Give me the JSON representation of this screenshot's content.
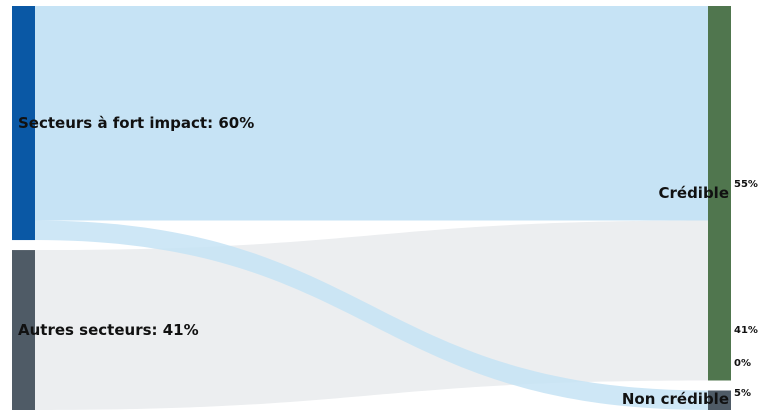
{
  "chart_data": {
    "type": "sankey",
    "sources": [
      {
        "id": "high",
        "label": "Secteurs à fort impact: 60%",
        "value": 60,
        "color": "#0a58a5",
        "link_color": "#c6e3f5"
      },
      {
        "id": "other",
        "label": "Autres secteurs: 41%",
        "value": 41,
        "color": "#4f5b66",
        "link_color": "#eceef0"
      }
    ],
    "targets": [
      {
        "id": "cred",
        "label": "Crédible",
        "value": 96,
        "color": "#50764e"
      },
      {
        "id": "noncred",
        "label": "Non crédible",
        "value": 5,
        "color": "#4f5b66"
      }
    ],
    "links": [
      {
        "source": "high",
        "target": "cred",
        "value": 55,
        "pct_label": "55%"
      },
      {
        "source": "other",
        "target": "cred",
        "value": 41,
        "pct_label": "41%"
      },
      {
        "source": "other",
        "target": "noncred",
        "value": 0,
        "pct_label": "0%"
      },
      {
        "source": "high",
        "target": "noncred",
        "value": 5,
        "pct_label": "5%"
      }
    ]
  }
}
